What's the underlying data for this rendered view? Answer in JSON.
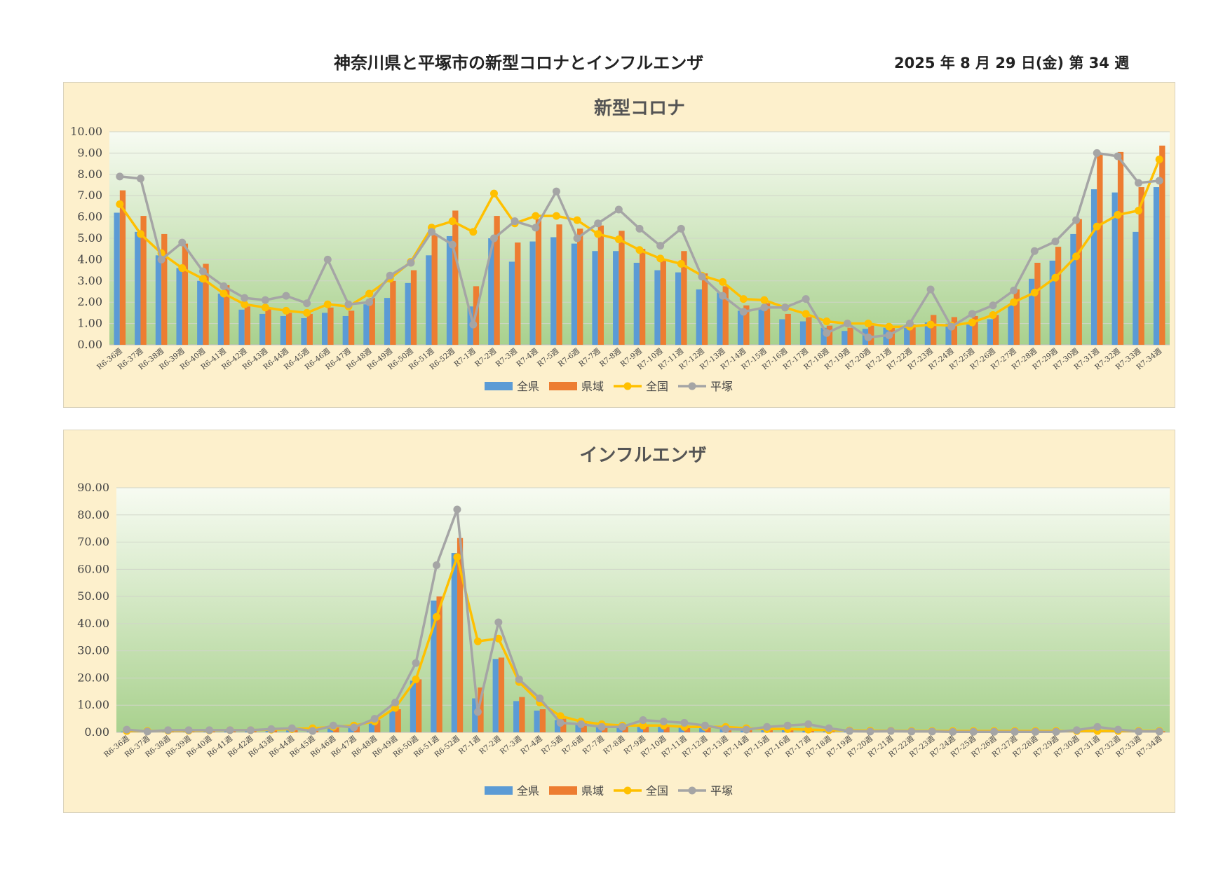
{
  "header": {
    "title": "神奈川県と平塚市の新型コロナとインフルエンザ",
    "date": "2025 年 8 月 29 日(金) 第 34 週"
  },
  "chart_data": [
    {
      "type": "bar",
      "title": "新型コロナ",
      "ylim": [
        0,
        10
      ],
      "y_ticks": [
        "0.00",
        "1.00",
        "2.00",
        "3.00",
        "4.00",
        "5.00",
        "6.00",
        "7.00",
        "8.00",
        "9.00",
        "10.00"
      ],
      "grid": true,
      "legend_position": "bottom",
      "categories": [
        "R6-36週",
        "R6-37週",
        "R6-38週",
        "R6-39週",
        "R6-40週",
        "R6-41週",
        "R6-42週",
        "R6-43週",
        "R6-44週",
        "R6-45週",
        "R6-46週",
        "R6-47週",
        "R6-48週",
        "R6-49週",
        "R6-50週",
        "R6-51週",
        "R6-52週",
        "R7-1週",
        "R7-2週",
        "R7-3週",
        "R7-4週",
        "R7-5週",
        "R7-6週",
        "R7-7週",
        "R7-8週",
        "R7-9週",
        "R7-10週",
        "R7-11週",
        "R7-12週",
        "R7-13週",
        "R7-14週",
        "R7-15週",
        "R7-16週",
        "R7-17週",
        "R7-18週",
        "R7-19週",
        "R7-20週",
        "R7-21週",
        "R7-22週",
        "R7-23週",
        "R7-24週",
        "R7-25週",
        "R7-26週",
        "R7-27週",
        "R7-28週",
        "R7-29週",
        "R7-30週",
        "R7-31週",
        "R7-32週",
        "R7-33週",
        "R7-34週"
      ],
      "series": [
        {
          "name": "全県",
          "kind": "bar",
          "color": "#5b9bd5",
          "values": [
            6.2,
            5.3,
            4.2,
            3.6,
            3.0,
            2.4,
            1.65,
            1.45,
            1.35,
            1.25,
            1.5,
            1.35,
            1.9,
            2.2,
            2.9,
            4.2,
            5.1,
            1.8,
            5.0,
            3.9,
            4.85,
            5.05,
            4.75,
            4.4,
            4.4,
            3.85,
            3.5,
            3.4,
            2.6,
            2.45,
            1.6,
            1.75,
            1.2,
            1.1,
            0.8,
            0.65,
            0.75,
            0.8,
            0.8,
            1.05,
            1.0,
            0.95,
            1.2,
            1.9,
            3.1,
            3.95,
            5.2,
            7.3,
            7.15,
            5.3,
            7.4
          ]
        },
        {
          "name": "県域",
          "kind": "bar",
          "color": "#ed7d31",
          "values": [
            7.25,
            6.05,
            5.2,
            4.75,
            3.8,
            2.8,
            1.8,
            1.75,
            1.5,
            1.45,
            1.75,
            1.6,
            2.2,
            3.0,
            3.5,
            5.2,
            6.3,
            2.75,
            6.05,
            4.8,
            5.9,
            5.65,
            5.45,
            5.6,
            5.35,
            4.5,
            4.0,
            4.4,
            3.35,
            2.75,
            1.85,
            1.95,
            1.45,
            1.3,
            0.9,
            0.8,
            0.9,
            0.9,
            0.95,
            1.4,
            1.3,
            1.35,
            1.4,
            2.6,
            3.85,
            4.6,
            5.9,
            9.0,
            9.05,
            7.4,
            9.35
          ]
        },
        {
          "name": "全国",
          "kind": "line",
          "color": "#ffc000",
          "values": [
            6.6,
            5.2,
            4.3,
            3.6,
            3.1,
            2.4,
            1.9,
            1.75,
            1.6,
            1.5,
            1.9,
            1.8,
            2.4,
            3.1,
            3.9,
            5.5,
            5.8,
            5.3,
            7.1,
            5.7,
            6.05,
            6.05,
            5.85,
            5.2,
            4.95,
            4.45,
            4.05,
            3.8,
            3.25,
            2.95,
            2.15,
            2.1,
            1.75,
            1.45,
            1.1,
            1.0,
            1.0,
            0.85,
            0.85,
            0.95,
            0.9,
            1.05,
            1.4,
            2.0,
            2.45,
            3.15,
            4.15,
            5.55,
            6.1,
            6.3,
            8.7
          ]
        },
        {
          "name": "平塚",
          "kind": "line",
          "color": "#a5a5a5",
          "values": [
            7.9,
            7.8,
            4.0,
            4.8,
            3.45,
            2.75,
            2.2,
            2.1,
            2.3,
            1.95,
            4.0,
            1.9,
            2.0,
            3.25,
            3.85,
            5.3,
            4.7,
            0.95,
            5.0,
            5.8,
            5.5,
            7.2,
            5.0,
            5.7,
            6.35,
            5.45,
            4.65,
            5.45,
            3.2,
            2.3,
            1.55,
            1.75,
            1.75,
            2.15,
            0.55,
            1.0,
            0.35,
            0.45,
            1.0,
            2.6,
            0.85,
            1.45,
            1.85,
            2.55,
            4.4,
            4.85,
            5.85,
            9.0,
            8.85,
            7.6,
            7.7
          ]
        }
      ]
    },
    {
      "type": "bar",
      "title": "インフルエンザ",
      "ylim": [
        0,
        90
      ],
      "y_ticks": [
        "0.00",
        "10.00",
        "20.00",
        "30.00",
        "40.00",
        "50.00",
        "60.00",
        "70.00",
        "80.00",
        "90.00"
      ],
      "grid": true,
      "legend_position": "bottom",
      "categories": [
        "R6-36週",
        "R6-37週",
        "R6-38週",
        "R6-39週",
        "R6-40週",
        "R6-41週",
        "R6-42週",
        "R6-43週",
        "R6-44週",
        "R6-45週",
        "R6-46週",
        "R6-47週",
        "R6-48週",
        "R6-49週",
        "R6-50週",
        "R6-51週",
        "R6-52週",
        "R7-1週",
        "R7-2週",
        "R7-3週",
        "R7-4週",
        "R7-5週",
        "R7-6週",
        "R7-7週",
        "R7-8週",
        "R7-9週",
        "R7-10週",
        "R7-11週",
        "R7-12週",
        "R7-13週",
        "R7-14週",
        "R7-15週",
        "R7-16週",
        "R7-17週",
        "R7-18週",
        "R7-19週",
        "R7-20週",
        "R7-21週",
        "R7-22週",
        "R7-23週",
        "R7-24週",
        "R7-25週",
        "R7-26週",
        "R7-27週",
        "R7-28週",
        "R7-29週",
        "R7-30週",
        "R7-31週",
        "R7-32週",
        "R7-33週",
        "R7-34週"
      ],
      "series": [
        {
          "name": "全県",
          "kind": "bar",
          "color": "#5b9bd5",
          "values": [
            0.3,
            0.3,
            0.4,
            0.4,
            0.4,
            0.5,
            0.5,
            0.7,
            0.9,
            1.0,
            1.5,
            2.0,
            4.0,
            8.0,
            19.0,
            48.5,
            66.0,
            12.5,
            27.0,
            11.5,
            8.0,
            4.5,
            3.0,
            2.5,
            2.0,
            2.0,
            2.0,
            2.0,
            1.5,
            1.5,
            1.0,
            1.0,
            1.0,
            1.0,
            0.8,
            0.6,
            0.5,
            0.5,
            0.4,
            0.4,
            0.3,
            0.3,
            0.3,
            0.3,
            0.3,
            0.3,
            0.3,
            0.3,
            0.3,
            0.3,
            0.3
          ]
        },
        {
          "name": "県域",
          "kind": "bar",
          "color": "#ed7d31",
          "values": [
            0.4,
            0.4,
            0.5,
            0.5,
            0.5,
            0.6,
            0.6,
            0.8,
            1.0,
            1.2,
            1.8,
            2.5,
            4.5,
            8.5,
            19.5,
            50.0,
            71.5,
            16.5,
            27.5,
            13.0,
            8.5,
            5.0,
            3.5,
            3.0,
            2.5,
            2.5,
            2.5,
            2.5,
            2.0,
            1.8,
            1.2,
            1.2,
            1.2,
            1.2,
            1.0,
            0.8,
            0.6,
            0.6,
            0.5,
            0.5,
            0.4,
            0.4,
            0.4,
            0.4,
            0.4,
            0.4,
            0.4,
            0.4,
            0.4,
            0.4,
            0.4
          ]
        },
        {
          "name": "全国",
          "kind": "line",
          "color": "#ffc000",
          "values": [
            0.5,
            0.5,
            0.6,
            0.6,
            0.7,
            0.8,
            0.8,
            1.0,
            1.2,
            1.5,
            2.0,
            2.5,
            4.0,
            9.0,
            19.5,
            42.5,
            64.5,
            33.5,
            34.5,
            18.5,
            11.0,
            6.0,
            4.0,
            3.0,
            2.5,
            2.5,
            2.5,
            2.0,
            2.0,
            2.0,
            1.5,
            1.2,
            1.2,
            1.0,
            0.8,
            0.7,
            0.6,
            0.6,
            0.5,
            0.5,
            0.5,
            0.5,
            0.5,
            0.5,
            0.5,
            0.5,
            0.5,
            0.5,
            0.5,
            0.5,
            0.5
          ]
        },
        {
          "name": "平塚",
          "kind": "line",
          "color": "#a5a5a5",
          "values": [
            1.0,
            0.3,
            0.8,
            0.8,
            0.8,
            0.8,
            0.8,
            1.2,
            1.5,
            0.5,
            2.5,
            1.8,
            5.0,
            11.0,
            25.5,
            61.5,
            82.0,
            7.5,
            40.5,
            19.5,
            12.5,
            3.5,
            3.0,
            2.0,
            2.0,
            4.5,
            4.0,
            3.5,
            2.5,
            1.2,
            1.0,
            2.0,
            2.5,
            3.0,
            1.5,
            0.5,
            0.3,
            0.5,
            0.3,
            0.3,
            0.2,
            0.2,
            0.2,
            0.2,
            0.2,
            0.2,
            0.8,
            2.0,
            1.0,
            0.3,
            0.3
          ]
        }
      ]
    }
  ]
}
